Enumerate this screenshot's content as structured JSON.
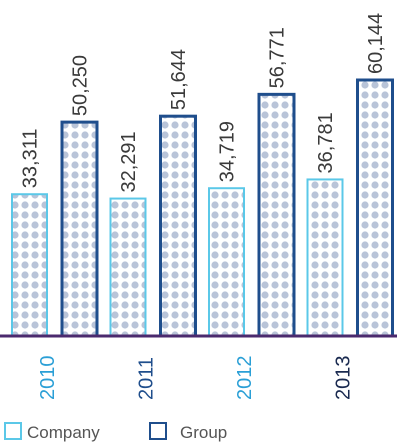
{
  "chart_data": {
    "type": "bar",
    "categories": [
      "2010",
      "2011",
      "2012",
      "2013"
    ],
    "series": [
      {
        "name": "Company",
        "values": [
          33311,
          32291,
          34719,
          36781
        ],
        "labels": [
          "33,311",
          "32,291",
          "34,719",
          "36,781"
        ]
      },
      {
        "name": "Group",
        "values": [
          50250,
          51644,
          56771,
          60144
        ],
        "labels": [
          "50,250",
          "51,644",
          "56,771",
          "60,144"
        ]
      }
    ],
    "ylim": [
      0,
      60144
    ],
    "grid": false,
    "legend": "bottom-left"
  },
  "colors": {
    "company": "#5bc8e8",
    "group": "#1f4e8c",
    "baseline": "#4b2a6e",
    "dots": "#b9c4d8",
    "category_2010": "#2a9fd6",
    "category_2011": "#1f4e8c",
    "category_2012": "#2a9fd6",
    "category_2013": "#1a2a50"
  }
}
